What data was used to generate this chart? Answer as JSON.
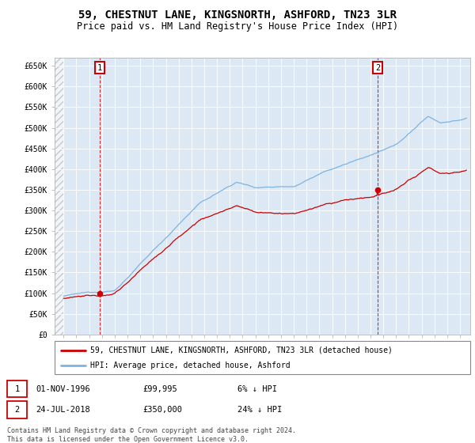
{
  "title": "59, CHESTNUT LANE, KINGSNORTH, ASHFORD, TN23 3LR",
  "subtitle": "Price paid vs. HM Land Registry's House Price Index (HPI)",
  "ylim": [
    0,
    670000
  ],
  "yticks": [
    0,
    50000,
    100000,
    150000,
    200000,
    250000,
    300000,
    350000,
    400000,
    450000,
    500000,
    550000,
    600000,
    650000
  ],
  "ytick_labels": [
    "£0",
    "£50K",
    "£100K",
    "£150K",
    "£200K",
    "£250K",
    "£300K",
    "£350K",
    "£400K",
    "£450K",
    "£500K",
    "£550K",
    "£600K",
    "£650K"
  ],
  "background_color": "#dde8f5",
  "hpi_color": "#7fb3e0",
  "price_color": "#cc0000",
  "sale1_date_num": 1996.84,
  "sale1_price": 99995,
  "sale2_date_num": 2018.56,
  "sale2_price": 350000,
  "legend_property": "59, CHESTNUT LANE, KINGSNORTH, ASHFORD, TN23 3LR (detached house)",
  "legend_hpi": "HPI: Average price, detached house, Ashford",
  "annotation1_label": "1",
  "annotation1_date": "01-NOV-1996",
  "annotation1_price": "£99,995",
  "annotation1_hpi": "6% ↓ HPI",
  "annotation2_label": "2",
  "annotation2_date": "24-JUL-2018",
  "annotation2_price": "£350,000",
  "annotation2_hpi": "24% ↓ HPI",
  "footer": "Contains HM Land Registry data © Crown copyright and database right 2024.\nThis data is licensed under the Open Government Licence v3.0."
}
